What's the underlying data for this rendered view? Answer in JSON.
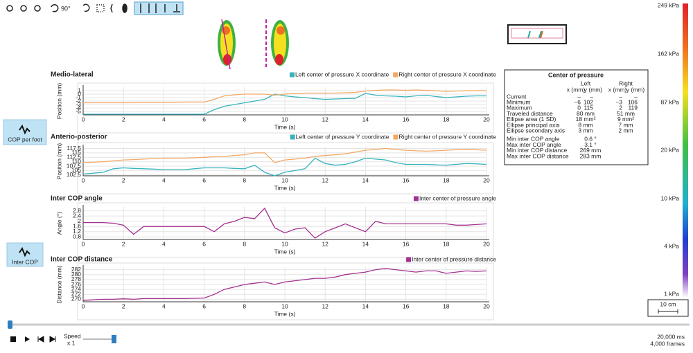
{
  "toolbar": {
    "rotate_label": "90°"
  },
  "side_buttons": [
    "COP per foot",
    "Inter COP"
  ],
  "color_scale": [
    "249 kPa",
    "162 kPa",
    "87 kPa",
    "20 kPa",
    "10 kPa",
    "4 kPa",
    "1 kPa"
  ],
  "scale_bar": "10 cm",
  "playback": {
    "speed_label": "Speed",
    "speed_value": "x 1",
    "duration": "20,000 ms",
    "frames": "4,000 frames"
  },
  "cop_table": {
    "title": "Center of pressure",
    "headers": [
      "Left",
      "Right"
    ],
    "subheaders": [
      "x (mm)",
      "y (mm)",
      "x (mm)",
      "y (mm)"
    ],
    "rows": [
      [
        "Current",
        "–",
        "–",
        "–",
        "–"
      ],
      [
        "Minimum",
        "−6",
        "102",
        "−3",
        "106"
      ],
      [
        "Maximum",
        "0",
        "115",
        "2",
        "119"
      ]
    ],
    "rows2": [
      [
        "Traveled distance",
        "80 mm",
        "51 mm"
      ],
      [
        "Ellipse area (1 SD)",
        "18 mm²",
        "9 mm²"
      ],
      [
        "Ellipse principal axis",
        "8 mm",
        "7 mm"
      ],
      [
        "Ellipse secondary axis",
        "3 mm",
        "2 mm"
      ]
    ],
    "rows3": [
      [
        "Min inter COP angle",
        "0.6 °"
      ],
      [
        "Max inter COP angle",
        "3.1 °"
      ],
      [
        "Min inter COP distance",
        "269 mm"
      ],
      [
        "Max inter COP distance",
        "283 mm"
      ]
    ]
  },
  "chart_data": [
    {
      "type": "line",
      "title": "Medio-lateral",
      "x_label": "Time (s)",
      "y_label": "Position (mm)",
      "x": [
        0,
        0.5,
        1,
        1.5,
        2,
        2.5,
        3,
        3.5,
        4,
        4.5,
        5,
        5.5,
        6,
        6.5,
        7,
        7.5,
        8,
        8.5,
        9,
        9.5,
        10,
        10.5,
        11,
        11.5,
        12,
        12.5,
        13,
        13.5,
        14,
        14.5,
        15,
        15.5,
        16,
        16.5,
        17,
        17.5,
        18,
        18.5,
        19,
        19.5,
        20
      ],
      "xlim": [
        0,
        20
      ],
      "xticks": [
        0,
        2,
        4,
        6,
        8,
        10,
        12,
        14,
        16,
        18,
        20
      ],
      "ylim": [
        -6,
        2
      ],
      "yticks": [
        -5,
        -4,
        -3,
        -2,
        -1,
        0,
        1
      ],
      "grid": true,
      "series": [
        {
          "name": "Left center of pressure X coordinate",
          "color": "#35b3bd",
          "values": [
            -5.8,
            -5.8,
            -5.8,
            -5.8,
            -5.8,
            -5.8,
            -5.8,
            -5.8,
            -5.8,
            -5.8,
            -5.8,
            -5.8,
            -5.8,
            -4.5,
            -3.5,
            -3,
            -2.5,
            -2,
            -1.5,
            0,
            -0.5,
            -0.8,
            -1,
            -1.3,
            -1.5,
            -1.4,
            -1.3,
            -1.2,
            0.2,
            -0.3,
            -0.5,
            -0.6,
            -0.8,
            -0.5,
            -0.3,
            -0.7,
            -1,
            -0.8,
            -0.6,
            -0.5,
            -0.5
          ]
        },
        {
          "name": "Right center of pressure X coordinate",
          "color": "#f2a865",
          "values": [
            -2.5,
            -2.5,
            -2.5,
            -2.5,
            -2.5,
            -2.5,
            -2.4,
            -2.4,
            -2.4,
            -2.4,
            -2.3,
            -2.3,
            -2.3,
            -1.5,
            -0.5,
            -0.2,
            0,
            0,
            0,
            -0.3,
            0,
            0.2,
            0.3,
            0.3,
            0.3,
            0.3,
            0.4,
            0.5,
            0.9,
            1.1,
            1.2,
            1.2,
            1.1,
            1.2,
            1.1,
            1.0,
            0.8,
            0.9,
            1.0,
            1.0,
            1.0
          ]
        }
      ]
    },
    {
      "type": "line",
      "title": "Anterio-posterior",
      "x_label": "Time (s)",
      "y_label": "Position (mm)",
      "x": [
        0,
        0.5,
        1,
        1.5,
        2,
        2.5,
        3,
        3.5,
        4,
        4.5,
        5,
        5.5,
        6,
        6.5,
        7,
        7.5,
        8,
        8.5,
        9,
        9.5,
        10,
        10.5,
        11,
        11.5,
        12,
        12.5,
        13,
        13.5,
        14,
        14.5,
        15,
        15.5,
        16,
        16.5,
        17,
        17.5,
        18,
        18.5,
        19,
        19.5,
        20
      ],
      "xlim": [
        0,
        20
      ],
      "xticks": [
        0,
        2,
        4,
        6,
        8,
        10,
        12,
        14,
        16,
        18,
        20
      ],
      "ylim": [
        102,
        118.5
      ],
      "yticks": [
        102.5,
        105,
        107.5,
        110,
        112.5,
        115,
        117.5
      ],
      "grid": true,
      "series": [
        {
          "name": "Left center of pressure Y coordinate",
          "color": "#35b3bd",
          "values": [
            103,
            103.5,
            104,
            106,
            106.5,
            106.2,
            106,
            105.8,
            105.5,
            105.5,
            105.5,
            106,
            106.5,
            106.5,
            106.5,
            106.2,
            106,
            108,
            104,
            102,
            104,
            105,
            106,
            112,
            109,
            108,
            108.5,
            110,
            112,
            111.5,
            111,
            109.5,
            108.5,
            108.5,
            108.5,
            108.2,
            108,
            108.5,
            109,
            108.8,
            108.5
          ]
        },
        {
          "name": "Right center of pressure Y coordinate",
          "color": "#f2a865",
          "values": [
            109.5,
            109.7,
            110,
            110.5,
            111,
            111.2,
            111.5,
            111.8,
            112,
            112,
            112,
            112.2,
            112.5,
            112.8,
            113,
            113.5,
            114,
            115,
            115,
            109.5,
            111,
            111.5,
            112,
            113,
            113.5,
            114,
            114.5,
            115.5,
            116.5,
            117,
            117.5,
            117,
            116.5,
            116.2,
            116,
            116.2,
            116.5,
            116.8,
            117,
            116.8,
            116.5
          ]
        }
      ]
    },
    {
      "type": "line",
      "title": "Inter COP angle",
      "x_label": "Time (s)",
      "y_label": "Angle (°)",
      "x": [
        0,
        0.5,
        1,
        1.5,
        2,
        2.5,
        3,
        3.5,
        4,
        4.5,
        5,
        5.5,
        6,
        6.5,
        7,
        7.5,
        8,
        8.5,
        9,
        9.5,
        10,
        10.5,
        11,
        11.5,
        12,
        12.5,
        13,
        13.5,
        14,
        14.5,
        15,
        15.5,
        16,
        16.5,
        17,
        17.5,
        18,
        18.5,
        19,
        19.5,
        20
      ],
      "xlim": [
        0,
        20
      ],
      "xticks": [
        0,
        2,
        4,
        6,
        8,
        10,
        12,
        14,
        16,
        18,
        20
      ],
      "ylim": [
        0.6,
        3.1
      ],
      "yticks": [
        0.8,
        1.2,
        1.6,
        2,
        2.4,
        2.8
      ],
      "grid": true,
      "series": [
        {
          "name": "Inter center of pressure angle",
          "color": "#a3308f",
          "values": [
            1.9,
            1.9,
            1.9,
            1.85,
            1.7,
            1.0,
            1.6,
            1.6,
            1.6,
            1.6,
            1.6,
            1.6,
            1.6,
            1.2,
            1.8,
            2.0,
            2.3,
            2.2,
            3.0,
            1.5,
            1.1,
            1.4,
            1.5,
            0.7,
            1.2,
            1.5,
            1.8,
            1.5,
            1.2,
            2.0,
            1.8,
            1.8,
            1.8,
            1.8,
            1.8,
            1.8,
            1.8,
            1.7,
            1.7,
            1.75,
            1.8
          ]
        }
      ]
    },
    {
      "type": "line",
      "title": "Inter COP distance",
      "x_label": "Time (s)",
      "y_label": "Distance (mm)",
      "x": [
        0,
        0.5,
        1,
        1.5,
        2,
        2.5,
        3,
        3.5,
        4,
        4.5,
        5,
        5.5,
        6,
        6.5,
        7,
        7.5,
        8,
        8.5,
        9,
        9.5,
        10,
        10.5,
        11,
        11.5,
        12,
        12.5,
        13,
        13.5,
        14,
        14.5,
        15,
        15.5,
        16,
        16.5,
        17,
        17.5,
        18,
        18.5,
        19,
        19.5,
        20
      ],
      "xlim": [
        0,
        20
      ],
      "xticks": [
        0,
        2,
        4,
        6,
        8,
        10,
        12,
        14,
        16,
        18,
        20
      ],
      "ylim": [
        269,
        283
      ],
      "yticks": [
        270,
        272,
        274,
        276,
        278,
        280,
        282
      ],
      "grid": true,
      "series": [
        {
          "name": "Inter center of pressure distance",
          "color": "#a3308f",
          "values": [
            269.5,
            269.8,
            270,
            270,
            270.2,
            270,
            270.3,
            270.3,
            270.3,
            270.3,
            270.3,
            270.4,
            270.5,
            272,
            274,
            275,
            276,
            276.5,
            277,
            276,
            277,
            277.5,
            278,
            278.5,
            278.5,
            279,
            280,
            280.5,
            281,
            282,
            282.5,
            282,
            281.5,
            281,
            281.5,
            281.5,
            280.5,
            281,
            281.5,
            281.3,
            281.5
          ]
        }
      ]
    }
  ]
}
